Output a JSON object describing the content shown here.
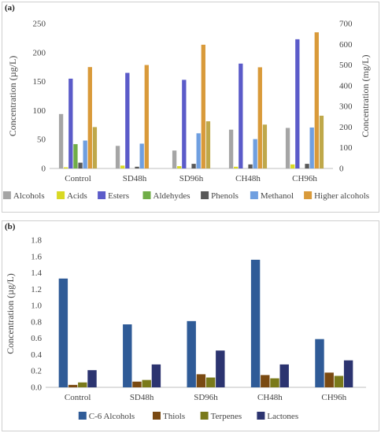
{
  "panels": [
    {
      "label": "(a)"
    },
    {
      "label": "(b)"
    }
  ],
  "chart_data": [
    {
      "type": "bar",
      "categories": [
        "Control",
        "SD48h",
        "SD96h",
        "CH48h",
        "CH96h"
      ],
      "ylabel": "Concentration (µg/L)",
      "ylabel_right": "Concentration (mg/L)",
      "ylim": [
        0,
        250
      ],
      "yticks": [
        0,
        50,
        100,
        150,
        200,
        250
      ],
      "ylim_right": [
        0,
        700
      ],
      "yticks_right": [
        0,
        100,
        200,
        300,
        400,
        500,
        600,
        700
      ],
      "legend_position": "bottom",
      "grid": false,
      "series": [
        {
          "name": "Alcohols",
          "axis": "left",
          "color": "#a5a5a5",
          "values": [
            94,
            39,
            31,
            67,
            70
          ]
        },
        {
          "name": "Acids",
          "axis": "left",
          "color": "#d9d924",
          "values": [
            2,
            5,
            4,
            3,
            7
          ]
        },
        {
          "name": "Esters",
          "axis": "left",
          "color": "#5b5bc9",
          "values": [
            155,
            165,
            153,
            181,
            223
          ]
        },
        {
          "name": "Aldehydes",
          "axis": "left",
          "color": "#70ad47",
          "values": [
            42,
            0,
            0,
            0,
            0
          ]
        },
        {
          "name": "Phenols",
          "axis": "left",
          "color": "#595959",
          "values": [
            10,
            3,
            8,
            7,
            8
          ]
        },
        {
          "name": "Methanol",
          "axis": "right",
          "color": "#6f9fe0",
          "values": [
            135,
            120,
            170,
            142,
            198
          ]
        },
        {
          "name": "Higher alcohols",
          "axis": "right",
          "color": "#d99a3a",
          "values": [
            490,
            500,
            598,
            489,
            658
          ]
        },
        {
          "name": "",
          "axis": "right",
          "color": "#bfa84a",
          "values": [
            200,
            0,
            228,
            212,
            255
          ]
        }
      ]
    },
    {
      "type": "bar",
      "categories": [
        "Control",
        "SD48h",
        "SD96h",
        "CH48h",
        "CH96h"
      ],
      "ylabel": "Concentration (µg/L)",
      "ylim": [
        0,
        1.8
      ],
      "yticks": [
        "0.0",
        "0.2",
        "0.4",
        "0.6",
        "0.8",
        "1.0",
        "1.2",
        "1.4",
        "1.6",
        "1.8"
      ],
      "legend_position": "bottom",
      "grid": false,
      "series": [
        {
          "name": "C-6 Alcohols",
          "color": "#2f5b97",
          "values": [
            1.33,
            0.77,
            0.81,
            1.56,
            0.59
          ]
        },
        {
          "name": "Thiols",
          "color": "#7a4a12",
          "values": [
            0.03,
            0.07,
            0.16,
            0.15,
            0.18
          ]
        },
        {
          "name": "Terpenes",
          "color": "#7a7a1a",
          "values": [
            0.06,
            0.09,
            0.12,
            0.11,
            0.14
          ]
        },
        {
          "name": "Lactones",
          "color": "#2c3470",
          "values": [
            0.21,
            0.28,
            0.45,
            0.28,
            0.33
          ]
        }
      ]
    }
  ]
}
